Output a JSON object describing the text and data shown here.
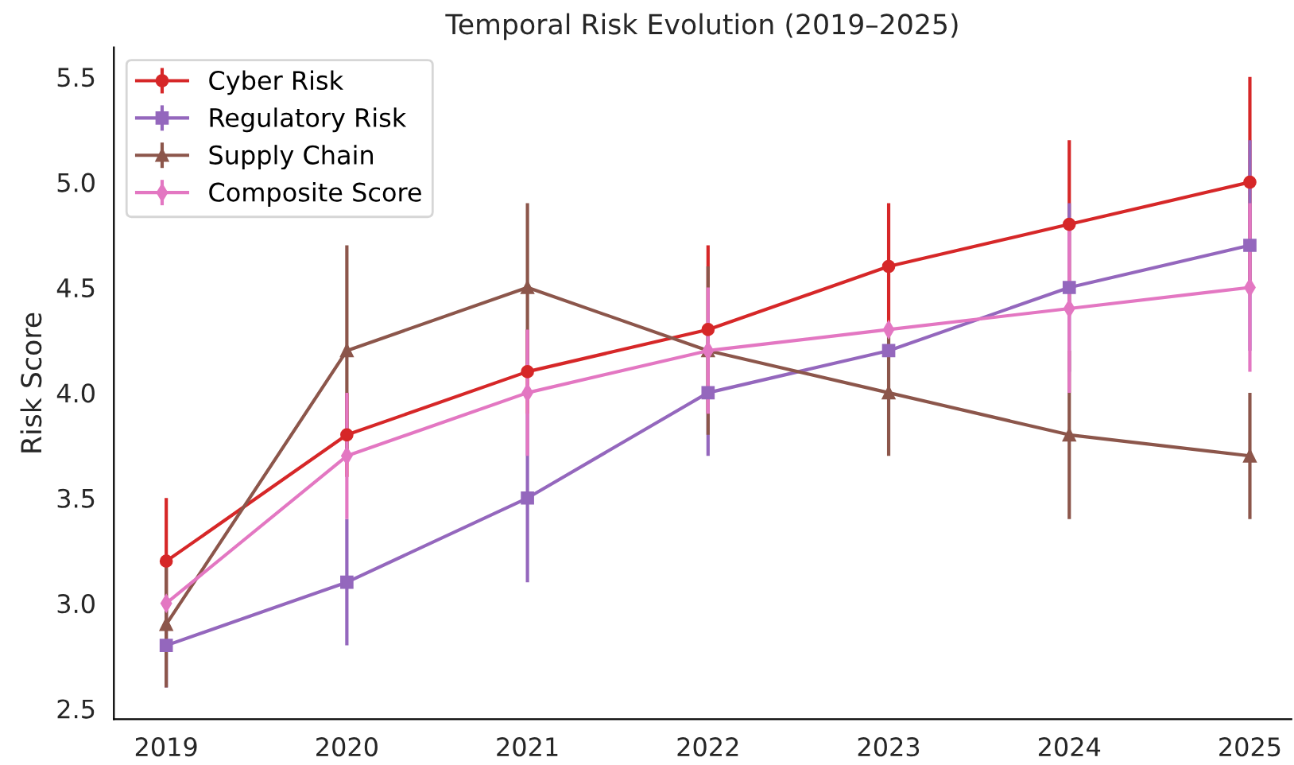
{
  "chart_data": {
    "type": "line",
    "title": "Temporal Risk Evolution (2019–2025)",
    "ylabel": "Risk Score",
    "x": [
      2019,
      2020,
      2021,
      2022,
      2023,
      2024,
      2025
    ],
    "series": [
      {
        "name": "Cyber Risk",
        "color": "#d62728",
        "marker": "circle",
        "values": [
          3.2,
          3.8,
          4.1,
          4.3,
          4.6,
          4.8,
          5.0
        ],
        "errors": [
          0.3,
          0.2,
          0.2,
          0.4,
          0.3,
          0.4,
          0.5
        ]
      },
      {
        "name": "Regulatory Risk",
        "color": "#9467bd",
        "marker": "square",
        "values": [
          2.8,
          3.1,
          3.5,
          4.0,
          4.2,
          4.5,
          4.7
        ],
        "errors": [
          0.2,
          0.3,
          0.4,
          0.3,
          null,
          0.4,
          0.5
        ]
      },
      {
        "name": "Supply Chain",
        "color": "#8c564b",
        "marker": "triangle",
        "values": [
          2.9,
          4.2,
          4.5,
          4.2,
          4.0,
          3.8,
          3.7
        ],
        "errors": [
          0.3,
          0.5,
          0.4,
          0.4,
          0.3,
          0.4,
          0.3
        ]
      },
      {
        "name": "Composite Score",
        "color": "#e377c2",
        "marker": "diamond",
        "values": [
          3.0,
          3.7,
          4.0,
          4.2,
          4.3,
          4.4,
          4.5
        ],
        "errors": [
          null,
          0.3,
          0.3,
          0.3,
          null,
          0.4,
          0.4
        ]
      }
    ],
    "xlim": [
      2018.71,
      2025.23
    ],
    "xticks": [
      2019,
      2020,
      2021,
      2022,
      2023,
      2024,
      2025
    ],
    "ylim": [
      2.45,
      5.64
    ],
    "yticks": [
      2.5,
      {
        "value": 3,
        "label": "3.0"
      },
      3.5,
      {
        "value": 4,
        "label": "4.0"
      },
      4.5,
      {
        "value": 5,
        "label": "5.0"
      },
      5.5
    ],
    "grid": false,
    "legend": "top left",
    "line_style": "solid"
  }
}
